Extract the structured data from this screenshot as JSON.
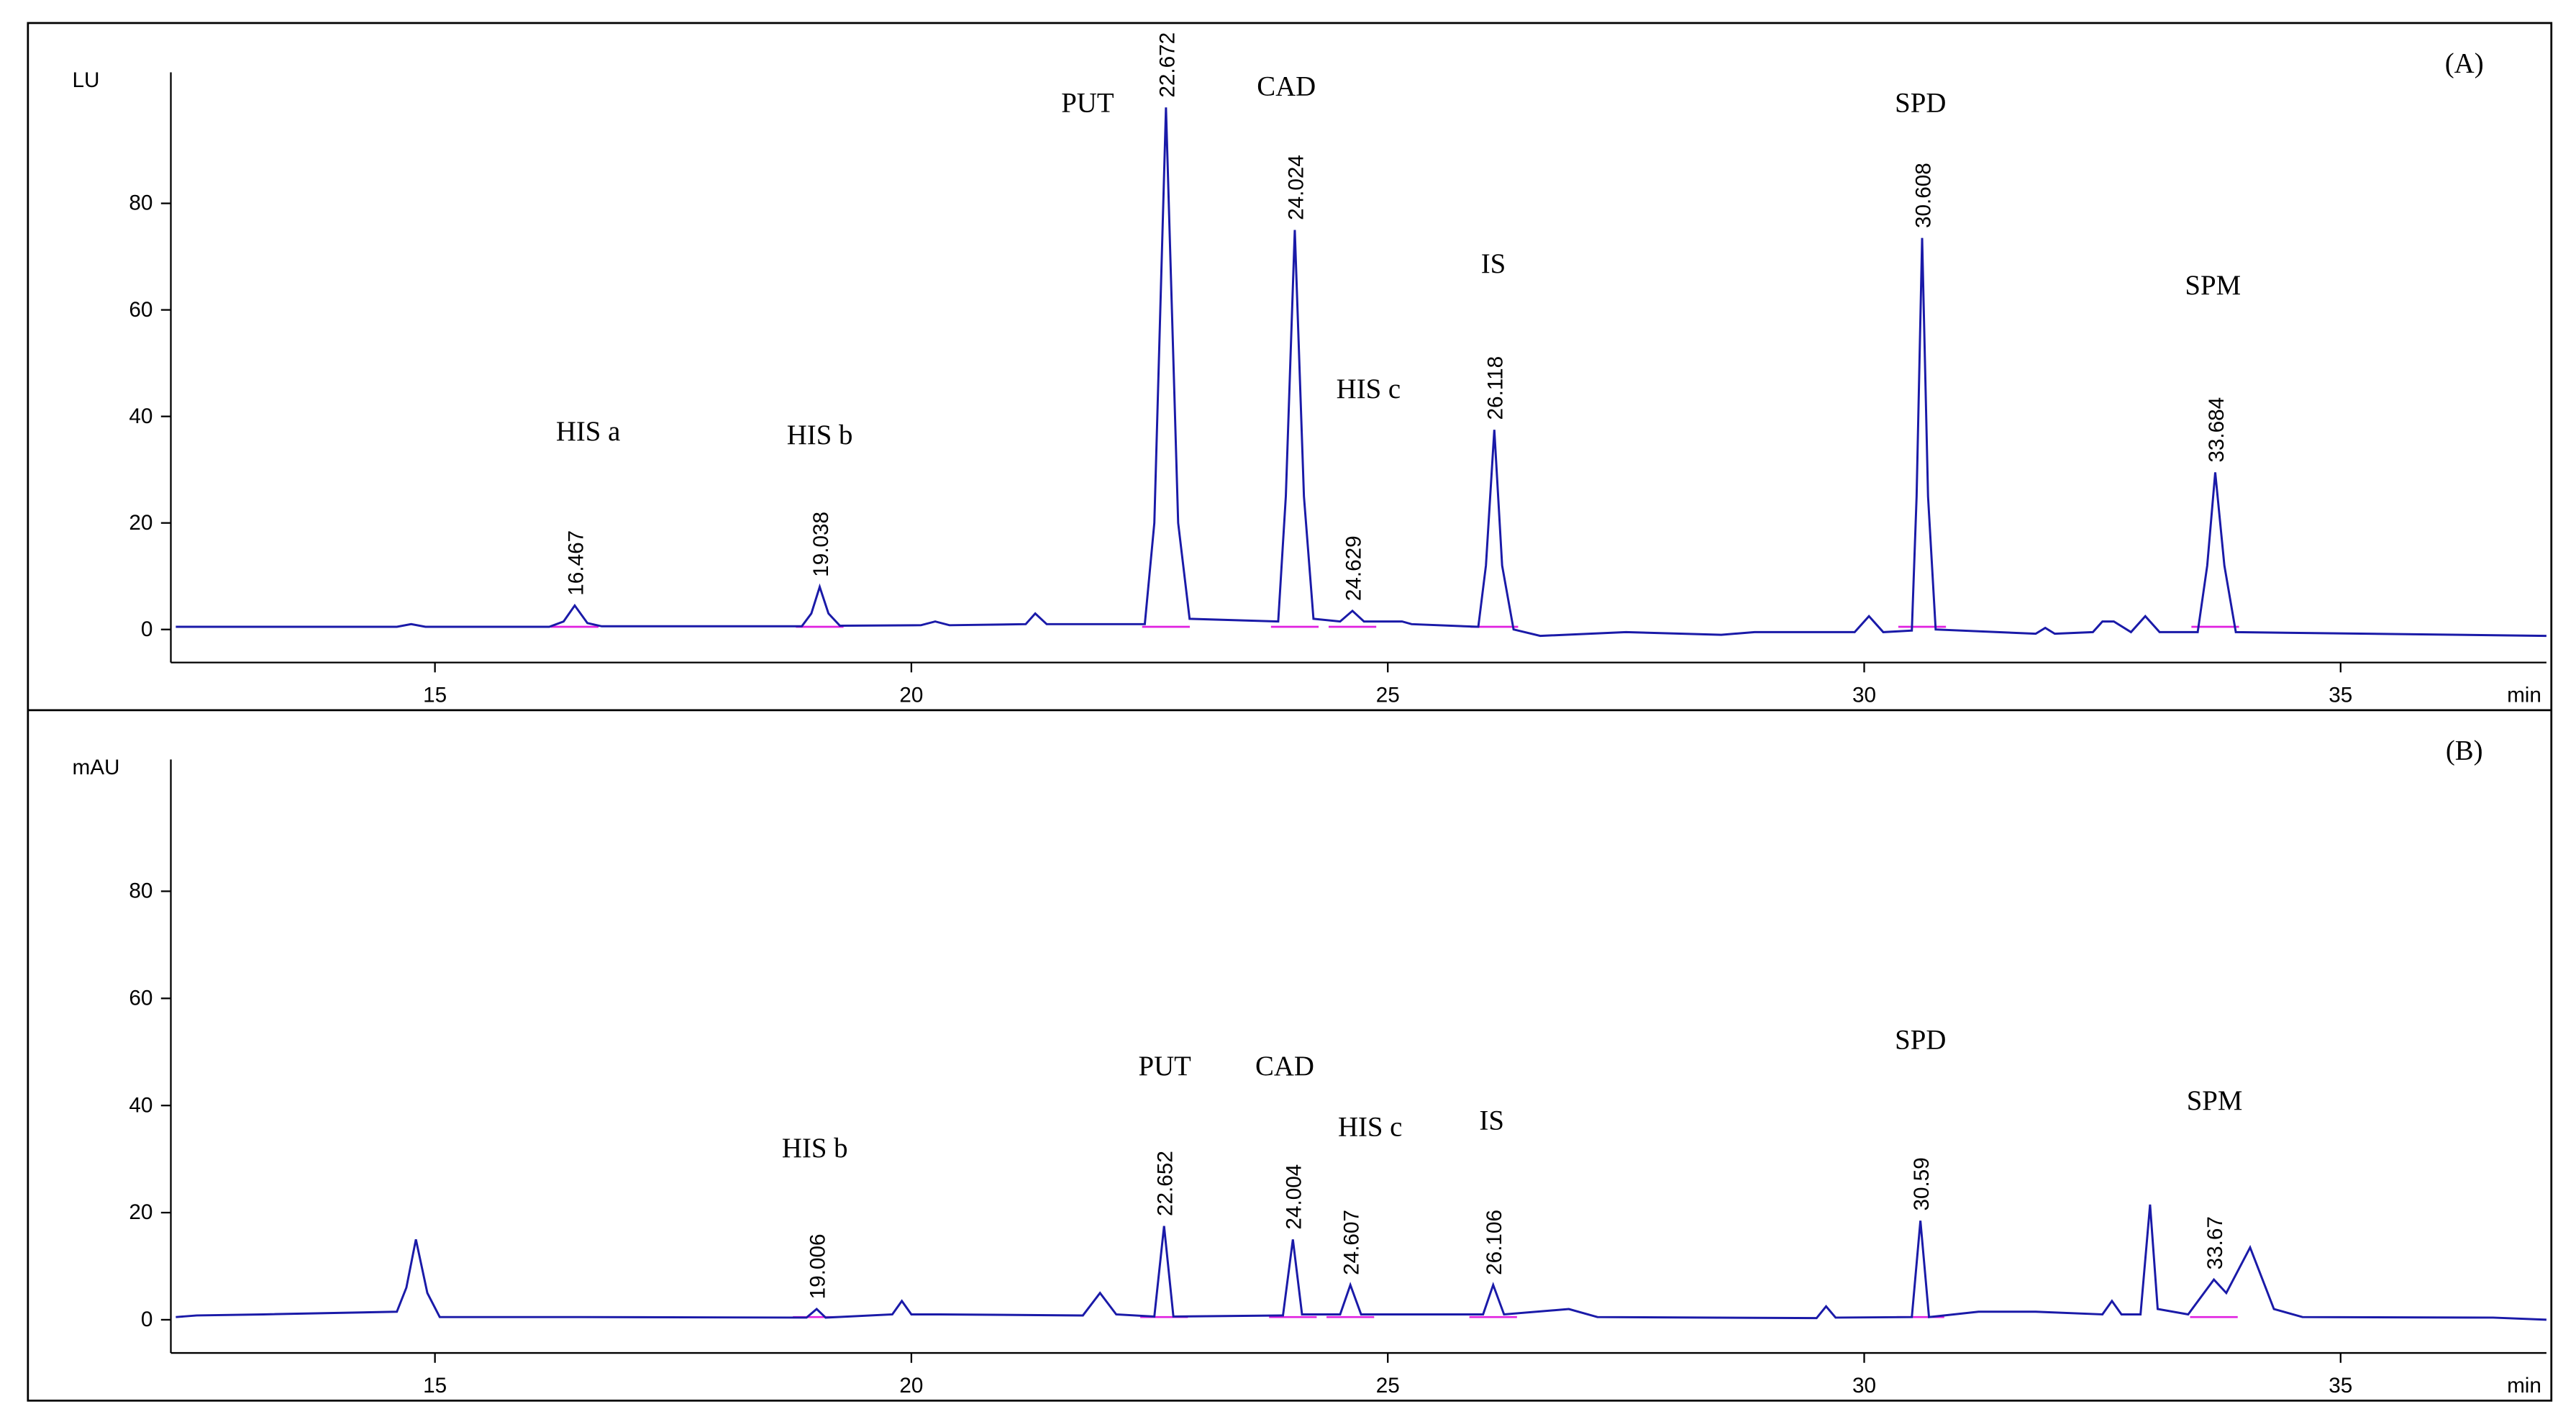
{
  "chart_data": [
    {
      "type": "line",
      "y_label": "LU",
      "panel_label": "(A)",
      "x_label": "min",
      "xlim": [
        12.28,
        37.16
      ],
      "ylim": [
        -6.2,
        104.6
      ],
      "xticks": [
        15,
        20,
        25,
        30,
        35
      ],
      "yticks": [
        0,
        20,
        40,
        60,
        80
      ],
      "color": "#1a1aa8",
      "baseline_color": "#e020e0",
      "x": [
        12.28,
        14.6,
        14.75,
        14.9,
        16.2,
        16.35,
        16.467,
        16.6,
        16.75,
        18.85,
        18.95,
        19.038,
        19.13,
        19.25,
        20.1,
        20.25,
        20.4,
        21.2,
        21.3,
        21.42,
        22.45,
        22.55,
        22.672,
        22.8,
        22.92,
        23.85,
        23.93,
        24.024,
        24.12,
        24.22,
        24.5,
        24.629,
        24.75,
        25.15,
        25.25,
        25.95,
        26.03,
        26.118,
        26.2,
        26.32,
        26.6,
        27.5,
        28.5,
        28.85,
        29.9,
        30.05,
        30.2,
        30.5,
        30.55,
        30.608,
        30.67,
        30.75,
        31.8,
        31.9,
        32.0,
        32.4,
        32.5,
        32.62,
        32.8,
        32.95,
        33.1,
        33.5,
        33.6,
        33.684,
        33.78,
        33.9,
        37.16
      ],
      "values": [
        0.5,
        0.5,
        1,
        0.5,
        0.5,
        1.5,
        4.5,
        1.2,
        0.6,
        0.6,
        3,
        8,
        3,
        0.7,
        0.8,
        1.5,
        0.8,
        1,
        3,
        1,
        1,
        20,
        98,
        20,
        2,
        1.5,
        25,
        75,
        25,
        2,
        1.5,
        3.5,
        1.5,
        1.5,
        1,
        0.5,
        12,
        37.5,
        12,
        0,
        -1.2,
        -0.5,
        -1,
        -0.5,
        -0.5,
        2.5,
        -0.5,
        -0.2,
        25,
        73.5,
        25,
        0,
        -0.8,
        0.3,
        -0.8,
        -0.5,
        1.5,
        1.5,
        -0.5,
        2.5,
        -0.5,
        -0.5,
        12,
        29.5,
        12,
        -0.5,
        -1.2
      ],
      "peaks": [
        {
          "label": "HIS a",
          "rt": 16.467
        },
        {
          "label": "HIS b",
          "rt": 19.038
        },
        {
          "label": "PUT",
          "rt": 22.672
        },
        {
          "label": "CAD",
          "rt": 24.024
        },
        {
          "label": "HIS c",
          "rt": 24.629
        },
        {
          "label": "IS",
          "rt": 26.118
        },
        {
          "label": "SPD",
          "rt": 30.608
        },
        {
          "label": "SPM",
          "rt": 33.684
        }
      ]
    },
    {
      "type": "line",
      "y_label": "mAU",
      "panel_label": "(B)",
      "x_label": "min",
      "xlim": [
        12.28,
        37.16
      ],
      "ylim": [
        -6.2,
        104.6
      ],
      "xticks": [
        15,
        20,
        25,
        30,
        35
      ],
      "yticks": [
        0,
        20,
        40,
        60,
        80
      ],
      "color": "#1a1aa8",
      "baseline_color": "#e020e0",
      "x": [
        12.28,
        12.5,
        13.2,
        14.6,
        14.7,
        14.8,
        14.92,
        15.05,
        16.5,
        18.9,
        19.006,
        19.1,
        19.8,
        19.9,
        20.0,
        20.3,
        21.8,
        21.98,
        22.15,
        22.55,
        22.652,
        22.75,
        23.9,
        24.004,
        24.1,
        24.5,
        24.607,
        24.72,
        26.0,
        26.106,
        26.22,
        26.9,
        27.2,
        29.5,
        29.6,
        29.7,
        30.5,
        30.59,
        30.68,
        31.2,
        31.8,
        32.5,
        32.6,
        32.7,
        32.9,
        33.0,
        33.08,
        33.4,
        33.67,
        33.8,
        34.05,
        34.3,
        34.6,
        36.6,
        37.16
      ],
      "values": [
        0.5,
        0.8,
        1,
        1.5,
        6,
        15,
        5,
        0.5,
        0.5,
        0.4,
        2,
        0.4,
        1,
        3.5,
        1,
        1,
        0.8,
        5,
        1,
        0.6,
        17.5,
        0.6,
        0.8,
        15,
        1,
        1,
        6.5,
        1,
        1,
        6.5,
        1,
        2,
        0.5,
        0.3,
        2.5,
        0.4,
        0.5,
        18.5,
        0.5,
        1.5,
        1.5,
        1,
        3.5,
        1,
        1,
        21.5,
        2,
        1,
        7.5,
        5,
        13.5,
        2,
        0.5,
        0.4,
        0
      ],
      "peaks": [
        {
          "label": "HIS b",
          "rt": 19.006
        },
        {
          "label": "PUT",
          "rt": 22.652
        },
        {
          "label": "CAD",
          "rt": 24.004
        },
        {
          "label": "HIS c",
          "rt": 24.607
        },
        {
          "label": "IS",
          "rt": 26.106
        },
        {
          "label": "SPD",
          "rt": 30.59
        },
        {
          "label": "SPM",
          "rt": 33.67
        }
      ]
    }
  ]
}
